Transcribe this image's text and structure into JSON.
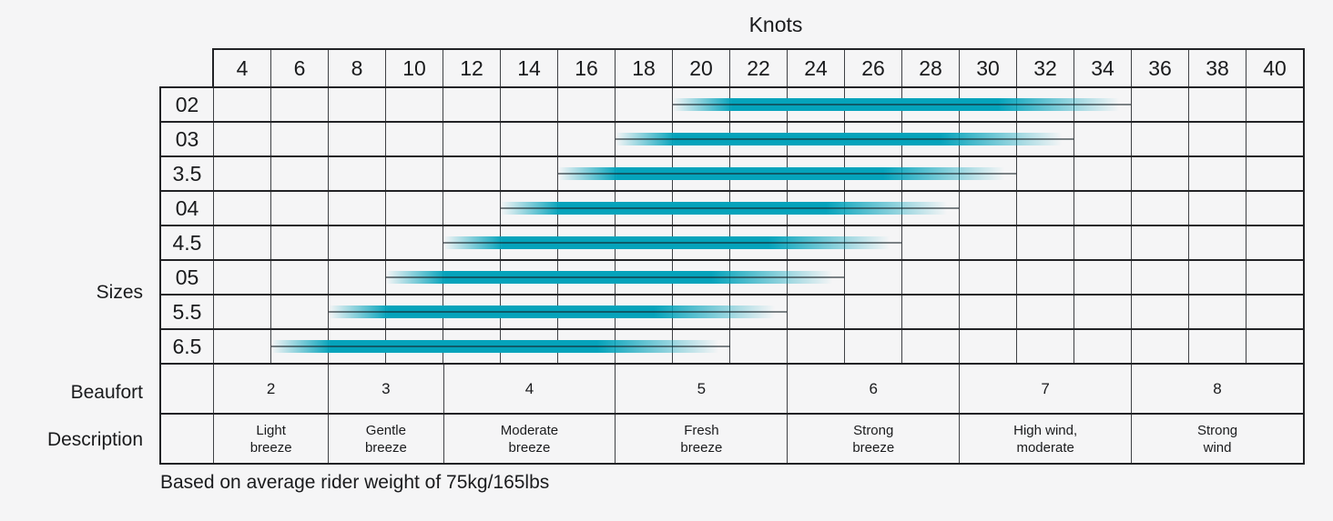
{
  "title": "Knots",
  "axis_labels": {
    "sizes": "Sizes",
    "beaufort": "Beaufort",
    "description": "Description"
  },
  "footnote": "Based on average rider weight of 75kg/165lbs",
  "colors": {
    "background": "#f5f5f6",
    "bar": "#05a3bb",
    "grid_major": "#222326",
    "grid_minor": "#3f4145",
    "text": "#1a1b1d"
  },
  "chart_data": {
    "type": "bar",
    "subtype": "horizontal-range",
    "title": "Knots",
    "x_axis": {
      "title": "Knots",
      "ticks": [
        4,
        6,
        8,
        10,
        12,
        14,
        16,
        18,
        20,
        22,
        24,
        26,
        28,
        30,
        32,
        34,
        36,
        38,
        40
      ],
      "range": [
        3,
        41
      ],
      "grid": true
    },
    "y_axis": {
      "title": "Sizes",
      "categories": [
        "02",
        "03",
        "3.5",
        "04",
        "4.5",
        "05",
        "5.5",
        "6.5"
      ]
    },
    "series": [
      {
        "size": "02",
        "min_knots": 19,
        "max_knots": 35
      },
      {
        "size": "03",
        "min_knots": 17,
        "max_knots": 33
      },
      {
        "size": "3.5",
        "min_knots": 15,
        "max_knots": 31
      },
      {
        "size": "04",
        "min_knots": 13,
        "max_knots": 29
      },
      {
        "size": "4.5",
        "min_knots": 11,
        "max_knots": 27
      },
      {
        "size": "05",
        "min_knots": 9,
        "max_knots": 25
      },
      {
        "size": "5.5",
        "min_knots": 7,
        "max_knots": 23
      },
      {
        "size": "6.5",
        "min_knots": 5,
        "max_knots": 21
      }
    ],
    "beaufort_groups": [
      {
        "beaufort": "2",
        "description_lines": [
          "Light",
          "breeze"
        ],
        "knot_columns": [
          4,
          6
        ]
      },
      {
        "beaufort": "3",
        "description_lines": [
          "Gentle",
          "breeze"
        ],
        "knot_columns": [
          8,
          10
        ]
      },
      {
        "beaufort": "4",
        "description_lines": [
          "Moderate",
          "breeze"
        ],
        "knot_columns": [
          12,
          14,
          16
        ]
      },
      {
        "beaufort": "5",
        "description_lines": [
          "Fresh",
          "breeze"
        ],
        "knot_columns": [
          18,
          20,
          22
        ]
      },
      {
        "beaufort": "6",
        "description_lines": [
          "Strong",
          "breeze"
        ],
        "knot_columns": [
          24,
          26,
          28
        ]
      },
      {
        "beaufort": "7",
        "description_lines": [
          "High wind,",
          "moderate"
        ],
        "knot_columns": [
          30,
          32,
          34
        ]
      },
      {
        "beaufort": "8",
        "description_lines": [
          "Strong",
          "wind"
        ],
        "knot_columns": [
          36,
          38,
          40
        ]
      }
    ]
  }
}
